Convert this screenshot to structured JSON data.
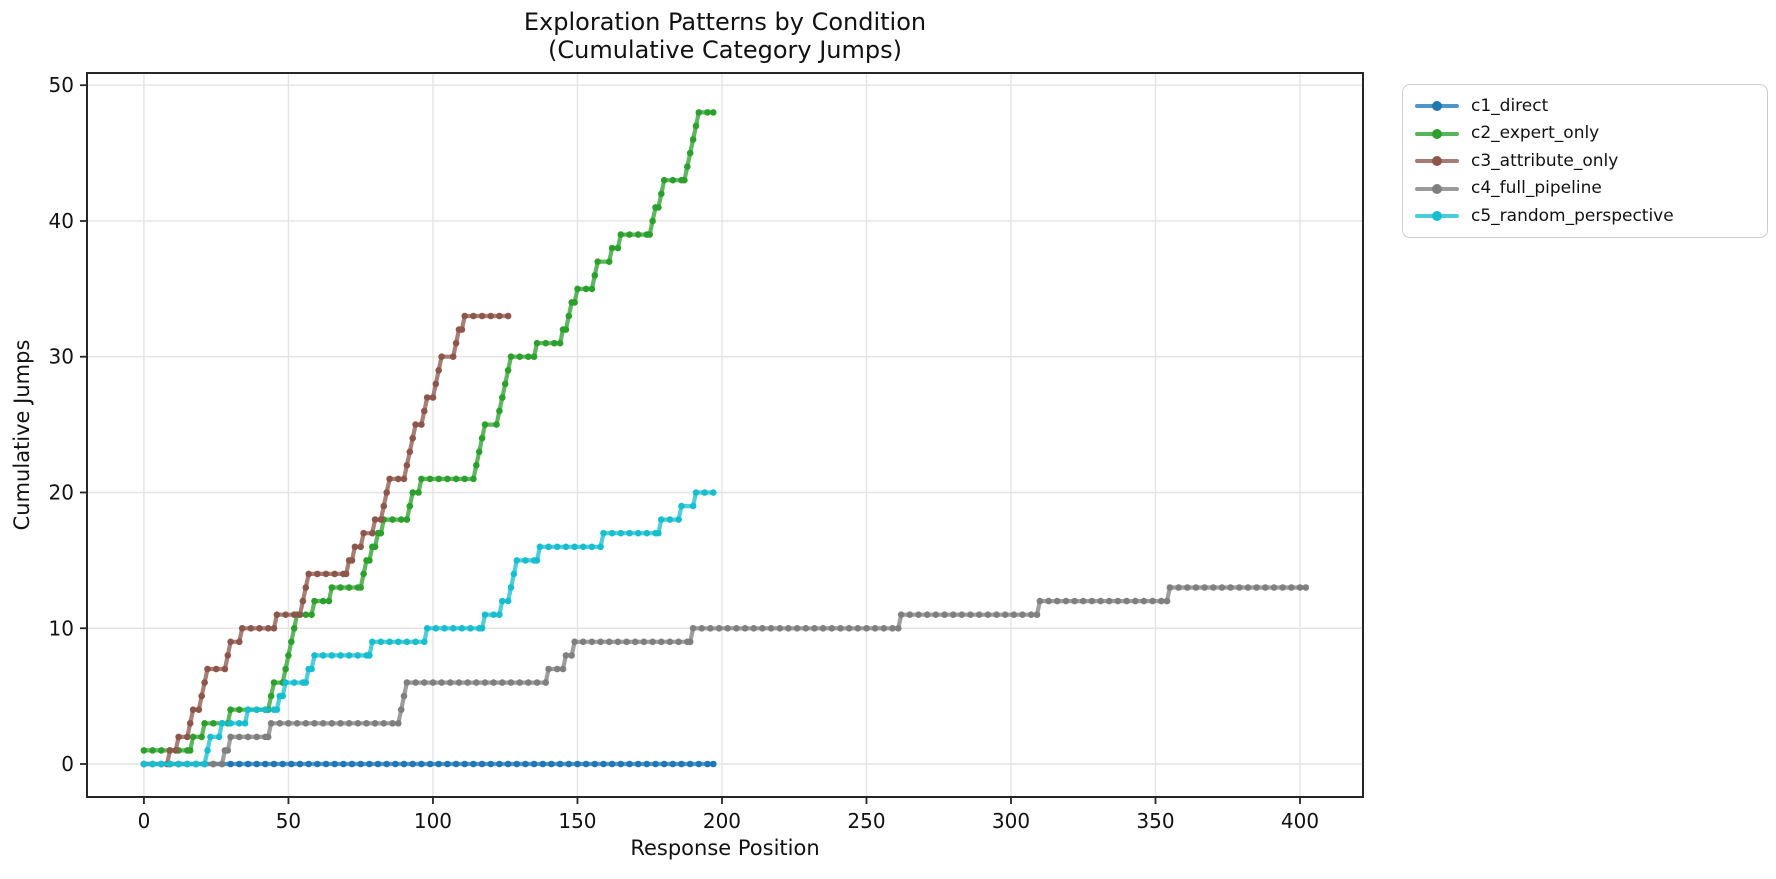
{
  "title": {
    "line1": "Exploration Patterns by Condition",
    "line2": "(Cumulative Category Jumps)"
  },
  "axes": {
    "spine_color": "#262626",
    "grid_color": "#e4e4e4",
    "tick_text_color": "#111111"
  },
  "chart_data": {
    "type": "line",
    "step": true,
    "title": "Exploration Patterns by Condition (Cumulative Category Jumps)",
    "xlabel": "Response Position",
    "ylabel": "Cumulative Jumps",
    "xlim": [
      -19.7,
      421.8
    ],
    "ylim": [
      -2.43,
      50.9
    ],
    "x_ticks": [
      0,
      50,
      100,
      150,
      200,
      250,
      300,
      350,
      400
    ],
    "y_ticks": [
      0,
      10,
      20,
      30,
      40,
      50
    ],
    "grid": true,
    "legend_position": "upper right, outside axes",
    "series": [
      {
        "name": "c1_direct",
        "color": "#1f77b4",
        "points": [
          [
            0,
            0
          ],
          [
            197,
            0
          ]
        ]
      },
      {
        "name": "c2_expert_only",
        "color": "#2ca02c",
        "points": [
          [
            0,
            1
          ],
          [
            16,
            1
          ],
          [
            17,
            2
          ],
          [
            20,
            2
          ],
          [
            21,
            3
          ],
          [
            29,
            3
          ],
          [
            30,
            4
          ],
          [
            43,
            4
          ],
          [
            44,
            5
          ],
          [
            45,
            6
          ],
          [
            48,
            6
          ],
          [
            49,
            7
          ],
          [
            50,
            8
          ],
          [
            51,
            9
          ],
          [
            52,
            10
          ],
          [
            53,
            11
          ],
          [
            58,
            11
          ],
          [
            59,
            12
          ],
          [
            64,
            12
          ],
          [
            65,
            13
          ],
          [
            75,
            13
          ],
          [
            76,
            14
          ],
          [
            77,
            15
          ],
          [
            78,
            15
          ],
          [
            79,
            16
          ],
          [
            80,
            16
          ],
          [
            81,
            17
          ],
          [
            82,
            17
          ],
          [
            83,
            18
          ],
          [
            91,
            18
          ],
          [
            92,
            19
          ],
          [
            93,
            20
          ],
          [
            95,
            20
          ],
          [
            96,
            21
          ],
          [
            114,
            21
          ],
          [
            115,
            22
          ],
          [
            116,
            23
          ],
          [
            117,
            24
          ],
          [
            118,
            25
          ],
          [
            122,
            25
          ],
          [
            123,
            26
          ],
          [
            124,
            27
          ],
          [
            125,
            28
          ],
          [
            126,
            29
          ],
          [
            127,
            30
          ],
          [
            135,
            30
          ],
          [
            136,
            31
          ],
          [
            144,
            31
          ],
          [
            145,
            32
          ],
          [
            146,
            32
          ],
          [
            147,
            33
          ],
          [
            148,
            34
          ],
          [
            149,
            34
          ],
          [
            150,
            35
          ],
          [
            155,
            35
          ],
          [
            156,
            36
          ],
          [
            157,
            37
          ],
          [
            161,
            37
          ],
          [
            162,
            38
          ],
          [
            164,
            38
          ],
          [
            165,
            39
          ],
          [
            175,
            39
          ],
          [
            176,
            40
          ],
          [
            177,
            41
          ],
          [
            178,
            41
          ],
          [
            179,
            42
          ],
          [
            180,
            43
          ],
          [
            187,
            43
          ],
          [
            188,
            44
          ],
          [
            189,
            45
          ],
          [
            190,
            46
          ],
          [
            191,
            47
          ],
          [
            192,
            48
          ],
          [
            197,
            48
          ]
        ]
      },
      {
        "name": "c3_attribute_only",
        "color": "#8c564b",
        "points": [
          [
            8,
            0
          ],
          [
            9,
            1
          ],
          [
            11,
            1
          ],
          [
            12,
            2
          ],
          [
            15,
            2
          ],
          [
            16,
            3
          ],
          [
            17,
            4
          ],
          [
            19,
            4
          ],
          [
            20,
            5
          ],
          [
            21,
            6
          ],
          [
            22,
            7
          ],
          [
            28,
            7
          ],
          [
            29,
            8
          ],
          [
            30,
            9
          ],
          [
            33,
            9
          ],
          [
            34,
            10
          ],
          [
            45,
            10
          ],
          [
            46,
            11
          ],
          [
            54,
            11
          ],
          [
            55,
            12
          ],
          [
            56,
            13
          ],
          [
            57,
            14
          ],
          [
            70,
            14
          ],
          [
            71,
            15
          ],
          [
            72,
            15
          ],
          [
            73,
            16
          ],
          [
            75,
            16
          ],
          [
            76,
            17
          ],
          [
            79,
            17
          ],
          [
            80,
            18
          ],
          [
            82,
            18
          ],
          [
            83,
            19
          ],
          [
            84,
            20
          ],
          [
            85,
            21
          ],
          [
            90,
            21
          ],
          [
            91,
            22
          ],
          [
            92,
            23
          ],
          [
            93,
            24
          ],
          [
            94,
            25
          ],
          [
            96,
            25
          ],
          [
            97,
            26
          ],
          [
            98,
            27
          ],
          [
            100,
            27
          ],
          [
            101,
            28
          ],
          [
            102,
            29
          ],
          [
            103,
            30
          ],
          [
            107,
            30
          ],
          [
            108,
            31
          ],
          [
            109,
            32
          ],
          [
            110,
            32
          ],
          [
            111,
            33
          ],
          [
            126,
            33
          ]
        ]
      },
      {
        "name": "c4_full_pipeline",
        "color": "#7f7f7f",
        "points": [
          [
            0,
            0
          ],
          [
            27,
            0
          ],
          [
            28,
            1
          ],
          [
            29,
            1
          ],
          [
            30,
            2
          ],
          [
            43,
            2
          ],
          [
            44,
            3
          ],
          [
            88,
            3
          ],
          [
            89,
            4
          ],
          [
            90,
            5
          ],
          [
            91,
            6
          ],
          [
            139,
            6
          ],
          [
            140,
            7
          ],
          [
            145,
            7
          ],
          [
            146,
            8
          ],
          [
            148,
            8
          ],
          [
            149,
            9
          ],
          [
            189,
            9
          ],
          [
            190,
            10
          ],
          [
            261,
            10
          ],
          [
            262,
            11
          ],
          [
            309,
            11
          ],
          [
            310,
            12
          ],
          [
            354,
            12
          ],
          [
            355,
            13
          ],
          [
            402,
            13
          ]
        ]
      },
      {
        "name": "c5_random_perspective",
        "color": "#17becf",
        "points": [
          [
            0,
            0
          ],
          [
            21,
            0
          ],
          [
            22,
            1
          ],
          [
            23,
            2
          ],
          [
            26,
            2
          ],
          [
            27,
            3
          ],
          [
            35,
            3
          ],
          [
            36,
            4
          ],
          [
            46,
            4
          ],
          [
            47,
            5
          ],
          [
            48,
            5
          ],
          [
            49,
            6
          ],
          [
            56,
            6
          ],
          [
            57,
            7
          ],
          [
            58,
            7
          ],
          [
            59,
            8
          ],
          [
            78,
            8
          ],
          [
            79,
            9
          ],
          [
            97,
            9
          ],
          [
            98,
            10
          ],
          [
            117,
            10
          ],
          [
            118,
            11
          ],
          [
            123,
            11
          ],
          [
            124,
            12
          ],
          [
            126,
            12
          ],
          [
            127,
            13
          ],
          [
            128,
            14
          ],
          [
            129,
            15
          ],
          [
            136,
            15
          ],
          [
            137,
            16
          ],
          [
            158,
            16
          ],
          [
            159,
            17
          ],
          [
            178,
            17
          ],
          [
            179,
            18
          ],
          [
            185,
            18
          ],
          [
            186,
            19
          ],
          [
            190,
            19
          ],
          [
            191,
            20
          ],
          [
            197,
            20
          ]
        ]
      }
    ]
  }
}
